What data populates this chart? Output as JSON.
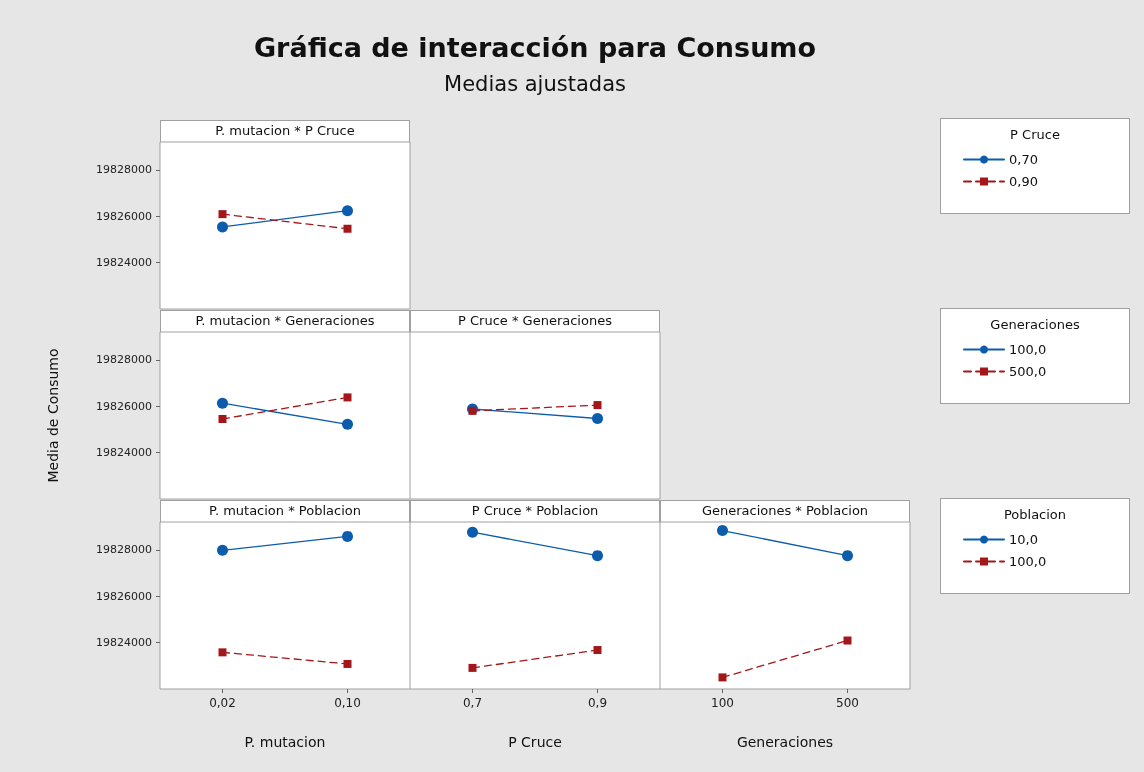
{
  "chart_data": [
    {
      "type": "line",
      "title": "P. mutacion * P Cruce",
      "annotations": [
        "Gráfica de interacción para Consumo",
        "Medias ajustadas"
      ],
      "categories": [
        "0,02",
        "0,10"
      ],
      "legend": "right",
      "legend_title": "P Cruce",
      "tick_labels": "y",
      "ylim": [
        19822000,
        19829200
      ],
      "yticks": [
        19824000,
        19826000,
        19828000
      ],
      "series": [
        {
          "name": "0,70",
          "color": "#0b5cad",
          "marker": "circle",
          "line_style": "solid",
          "values": [
            19825540,
            19826240
          ]
        },
        {
          "name": "0,90",
          "color": "#a3171b",
          "marker": "square",
          "line_style": "dashed",
          "values": [
            19826090,
            19825460
          ]
        }
      ]
    },
    {
      "type": "line",
      "title": "P. mutacion * Generaciones",
      "ylabel": "Media de Consumo",
      "categories": [
        "0,02",
        "0,10"
      ],
      "tick_labels": "y",
      "ylim": [
        19822000,
        19829200
      ],
      "yticks": [
        19824000,
        19826000,
        19828000
      ],
      "series": [
        {
          "color": "#0b5cad",
          "marker": "circle",
          "line_style": "solid",
          "values": [
            19826130,
            19825220
          ]
        },
        {
          "color": "#a3171b",
          "marker": "square",
          "line_style": "dashed",
          "values": [
            19825450,
            19826380
          ]
        }
      ]
    },
    {
      "type": "line",
      "title": "P Cruce * Generaciones",
      "categories": [
        "0,7",
        "0,9"
      ],
      "legend": "right",
      "legend_title": "Generaciones",
      "tick_labels": false,
      "ylim": [
        19822000,
        19829200
      ],
      "series": [
        {
          "name": "100,0",
          "color": "#0b5cad",
          "marker": "circle",
          "line_style": "solid",
          "values": [
            19825880,
            19825470
          ]
        },
        {
          "name": "500,0",
          "color": "#a3171b",
          "marker": "square",
          "line_style": "dashed",
          "values": [
            19825800,
            19826050
          ]
        }
      ]
    },
    {
      "type": "line",
      "title": "P. mutacion * Poblacion",
      "xlabel": "P. mutacion",
      "categories": [
        "0,02",
        "0,10"
      ],
      "ylim": [
        19822000,
        19829200
      ],
      "yticks": [
        19824000,
        19826000,
        19828000
      ],
      "series": [
        {
          "color": "#0b5cad",
          "marker": "circle",
          "line_style": "solid",
          "values": [
            19827980,
            19828580
          ]
        },
        {
          "color": "#a3171b",
          "marker": "square",
          "line_style": "dashed",
          "values": [
            19823580,
            19823080
          ]
        }
      ]
    },
    {
      "type": "line",
      "title": "P Cruce * Poblacion",
      "xlabel": "P Cruce",
      "categories": [
        "0,7",
        "0,9"
      ],
      "tick_labels": "x",
      "ylim": [
        19822000,
        19829200
      ],
      "series": [
        {
          "color": "#0b5cad",
          "marker": "circle",
          "line_style": "solid",
          "values": [
            19828760,
            19827750
          ]
        },
        {
          "color": "#a3171b",
          "marker": "square",
          "line_style": "dashed",
          "values": [
            19822910,
            19823680
          ]
        }
      ]
    },
    {
      "type": "line",
      "title": "Generaciones * Poblacion",
      "xlabel": "Generaciones",
      "categories": [
        "100",
        "500"
      ],
      "legend": "right",
      "legend_title": "Poblacion",
      "tick_labels": "x",
      "ylim": [
        19822000,
        19829200
      ],
      "series": [
        {
          "name": "10,0",
          "color": "#0b5cad",
          "marker": "circle",
          "line_style": "solid",
          "values": [
            19828830,
            19827750
          ]
        },
        {
          "name": "100,0",
          "color": "#a3171b",
          "marker": "square",
          "line_style": "dashed",
          "values": [
            19822500,
            19824090
          ]
        }
      ]
    }
  ]
}
